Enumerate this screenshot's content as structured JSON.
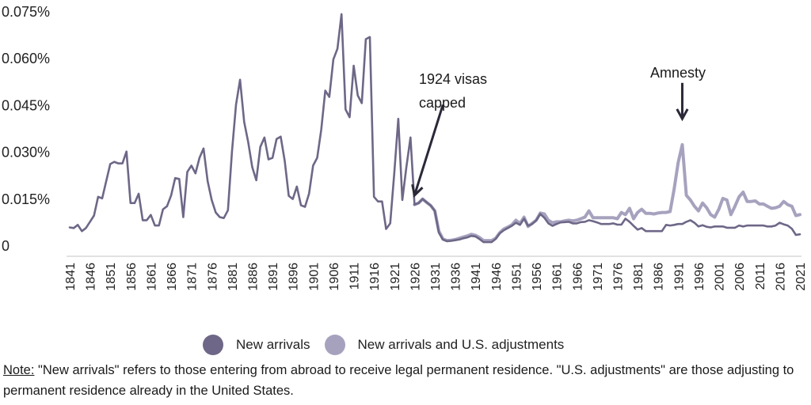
{
  "chart_data": {
    "type": "line",
    "ylabel": "",
    "xlabel": "",
    "ylim": [
      0,
      0.075
    ],
    "yticks": [
      0,
      0.015,
      0.03,
      0.045,
      0.06,
      0.075
    ],
    "ytick_labels": [
      "0",
      "0.015%",
      "0.030%",
      "0.045%",
      "0.060%",
      "0.075%"
    ],
    "xlim": [
      1841,
      2021
    ],
    "xticks": [
      1841,
      1846,
      1851,
      1856,
      1861,
      1866,
      1871,
      1876,
      1881,
      1886,
      1891,
      1896,
      1901,
      1906,
      1911,
      1916,
      1921,
      1926,
      1931,
      1936,
      1941,
      1946,
      1951,
      1956,
      1961,
      1966,
      1971,
      1976,
      1981,
      1986,
      1991,
      1996,
      2001,
      2006,
      2011,
      2016,
      2021
    ],
    "legend_position": "bottom",
    "grid": false,
    "series": [
      {
        "name": "New arrivals",
        "color": "#6e6787",
        "points": [
          [
            1841,
            0.0057
          ],
          [
            1842,
            0.0055
          ],
          [
            1843,
            0.0065
          ],
          [
            1844,
            0.0045
          ],
          [
            1845,
            0.0055
          ],
          [
            1846,
            0.0075
          ],
          [
            1847,
            0.0095
          ],
          [
            1848,
            0.0155
          ],
          [
            1849,
            0.015
          ],
          [
            1850,
            0.0205
          ],
          [
            1851,
            0.026
          ],
          [
            1852,
            0.0267
          ],
          [
            1853,
            0.0262
          ],
          [
            1854,
            0.0262
          ],
          [
            1855,
            0.03
          ],
          [
            1856,
            0.0135
          ],
          [
            1857,
            0.0135
          ],
          [
            1858,
            0.0165
          ],
          [
            1859,
            0.008
          ],
          [
            1860,
            0.008
          ],
          [
            1861,
            0.0097
          ],
          [
            1862,
            0.0063
          ],
          [
            1863,
            0.0063
          ],
          [
            1864,
            0.0115
          ],
          [
            1865,
            0.0125
          ],
          [
            1866,
            0.016
          ],
          [
            1867,
            0.0215
          ],
          [
            1868,
            0.0212
          ],
          [
            1869,
            0.009
          ],
          [
            1870,
            0.0235
          ],
          [
            1871,
            0.0255
          ],
          [
            1872,
            0.023
          ],
          [
            1873,
            0.028
          ],
          [
            1874,
            0.031
          ],
          [
            1875,
            0.0205
          ],
          [
            1876,
            0.0145
          ],
          [
            1877,
            0.0105
          ],
          [
            1878,
            0.009
          ],
          [
            1879,
            0.0087
          ],
          [
            1880,
            0.0112
          ],
          [
            1881,
            0.03
          ],
          [
            1882,
            0.045
          ],
          [
            1883,
            0.053
          ],
          [
            1884,
            0.0395
          ],
          [
            1885,
            0.033
          ],
          [
            1886,
            0.025
          ],
          [
            1887,
            0.0208
          ],
          [
            1888,
            0.0315
          ],
          [
            1889,
            0.0345
          ],
          [
            1890,
            0.0275
          ],
          [
            1891,
            0.028
          ],
          [
            1892,
            0.034
          ],
          [
            1893,
            0.0348
          ],
          [
            1894,
            0.027
          ],
          [
            1895,
            0.0158
          ],
          [
            1896,
            0.0148
          ],
          [
            1897,
            0.0188
          ],
          [
            1898,
            0.0128
          ],
          [
            1899,
            0.0123
          ],
          [
            1900,
            0.0165
          ],
          [
            1901,
            0.0255
          ],
          [
            1902,
            0.028
          ],
          [
            1903,
            0.037
          ],
          [
            1904,
            0.0495
          ],
          [
            1905,
            0.0475
          ],
          [
            1906,
            0.0595
          ],
          [
            1907,
            0.063
          ],
          [
            1908,
            0.074
          ],
          [
            1909,
            0.0435
          ],
          [
            1910,
            0.041
          ],
          [
            1911,
            0.0575
          ],
          [
            1912,
            0.048
          ],
          [
            1913,
            0.0455
          ],
          [
            1914,
            0.066
          ],
          [
            1915,
            0.0667
          ],
          [
            1916,
            0.0155
          ],
          [
            1917,
            0.014
          ],
          [
            1918,
            0.014
          ],
          [
            1919,
            0.0052
          ],
          [
            1920,
            0.007
          ],
          [
            1921,
            0.023
          ],
          [
            1922,
            0.0405
          ],
          [
            1923,
            0.0145
          ],
          [
            1924,
            0.025
          ],
          [
            1925,
            0.0345
          ],
          [
            1926,
            0.013
          ],
          [
            1927,
            0.0135
          ],
          [
            1928,
            0.0148
          ],
          [
            1929,
            0.0137
          ],
          [
            1930,
            0.0127
          ],
          [
            1931,
            0.011
          ],
          [
            1932,
            0.004
          ],
          [
            1933,
            0.0018
          ],
          [
            1934,
            0.0013
          ],
          [
            1935,
            0.0014
          ],
          [
            1936,
            0.0016
          ],
          [
            1937,
            0.0018
          ],
          [
            1938,
            0.0022
          ],
          [
            1939,
            0.0025
          ],
          [
            1940,
            0.003
          ],
          [
            1941,
            0.0028
          ],
          [
            1942,
            0.002
          ],
          [
            1943,
            0.001
          ],
          [
            1944,
            0.001
          ],
          [
            1945,
            0.001
          ],
          [
            1946,
            0.002
          ],
          [
            1947,
            0.0038
          ],
          [
            1948,
            0.0048
          ],
          [
            1949,
            0.0055
          ],
          [
            1950,
            0.0062
          ],
          [
            1951,
            0.0072
          ],
          [
            1952,
            0.0065
          ],
          [
            1953,
            0.0085
          ],
          [
            1954,
            0.0062
          ],
          [
            1955,
            0.0068
          ],
          [
            1956,
            0.008
          ],
          [
            1957,
            0.01
          ],
          [
            1958,
            0.0088
          ],
          [
            1959,
            0.007
          ],
          [
            1960,
            0.0062
          ],
          [
            1961,
            0.0068
          ],
          [
            1962,
            0.0073
          ],
          [
            1963,
            0.0074
          ],
          [
            1964,
            0.0075
          ],
          [
            1965,
            0.007
          ],
          [
            1966,
            0.007
          ],
          [
            1967,
            0.0074
          ],
          [
            1968,
            0.0075
          ],
          [
            1969,
            0.008
          ],
          [
            1970,
            0.0077
          ],
          [
            1971,
            0.0073
          ],
          [
            1972,
            0.0068
          ],
          [
            1973,
            0.0068
          ],
          [
            1974,
            0.0068
          ],
          [
            1975,
            0.007
          ],
          [
            1976,
            0.0066
          ],
          [
            1977,
            0.0066
          ],
          [
            1978,
            0.0085
          ],
          [
            1979,
            0.0075
          ],
          [
            1980,
            0.0062
          ],
          [
            1981,
            0.005
          ],
          [
            1982,
            0.0055
          ],
          [
            1983,
            0.0045
          ],
          [
            1984,
            0.0045
          ],
          [
            1985,
            0.0045
          ],
          [
            1986,
            0.0045
          ],
          [
            1987,
            0.0045
          ],
          [
            1988,
            0.0065
          ],
          [
            1989,
            0.0063
          ],
          [
            1990,
            0.0065
          ],
          [
            1991,
            0.0068
          ],
          [
            1992,
            0.0068
          ],
          [
            1993,
            0.0075
          ],
          [
            1994,
            0.008
          ],
          [
            1995,
            0.0072
          ],
          [
            1996,
            0.006
          ],
          [
            1997,
            0.0064
          ],
          [
            1998,
            0.0059
          ],
          [
            1999,
            0.0057
          ],
          [
            2000,
            0.006
          ],
          [
            2001,
            0.006
          ],
          [
            2002,
            0.006
          ],
          [
            2003,
            0.0056
          ],
          [
            2004,
            0.0056
          ],
          [
            2005,
            0.0056
          ],
          [
            2006,
            0.0063
          ],
          [
            2007,
            0.006
          ],
          [
            2008,
            0.0063
          ],
          [
            2009,
            0.0063
          ],
          [
            2010,
            0.0063
          ],
          [
            2011,
            0.0063
          ],
          [
            2012,
            0.0063
          ],
          [
            2013,
            0.006
          ],
          [
            2014,
            0.006
          ],
          [
            2015,
            0.0063
          ],
          [
            2016,
            0.0072
          ],
          [
            2017,
            0.0067
          ],
          [
            2018,
            0.0063
          ],
          [
            2019,
            0.0053
          ],
          [
            2020,
            0.0033
          ],
          [
            2021,
            0.0035
          ]
        ]
      },
      {
        "name": "New arrivals and U.S. adjustments",
        "color": "#a6a2be",
        "points": [
          [
            1926,
            0.013
          ],
          [
            1927,
            0.0135
          ],
          [
            1928,
            0.0148
          ],
          [
            1929,
            0.0137
          ],
          [
            1930,
            0.0127
          ],
          [
            1931,
            0.011
          ],
          [
            1932,
            0.0045
          ],
          [
            1933,
            0.002
          ],
          [
            1934,
            0.0015
          ],
          [
            1935,
            0.0016
          ],
          [
            1936,
            0.0018
          ],
          [
            1937,
            0.0022
          ],
          [
            1938,
            0.0026
          ],
          [
            1939,
            0.003
          ],
          [
            1940,
            0.0035
          ],
          [
            1941,
            0.0032
          ],
          [
            1942,
            0.0025
          ],
          [
            1943,
            0.0015
          ],
          [
            1944,
            0.0015
          ],
          [
            1945,
            0.0015
          ],
          [
            1946,
            0.0022
          ],
          [
            1947,
            0.004
          ],
          [
            1948,
            0.0052
          ],
          [
            1949,
            0.0058
          ],
          [
            1950,
            0.0065
          ],
          [
            1951,
            0.008
          ],
          [
            1952,
            0.007
          ],
          [
            1953,
            0.009
          ],
          [
            1954,
            0.006
          ],
          [
            1955,
            0.007
          ],
          [
            1956,
            0.008
          ],
          [
            1957,
            0.0103
          ],
          [
            1958,
            0.01
          ],
          [
            1959,
            0.008
          ],
          [
            1960,
            0.0072
          ],
          [
            1961,
            0.0075
          ],
          [
            1962,
            0.0075
          ],
          [
            1963,
            0.0078
          ],
          [
            1964,
            0.008
          ],
          [
            1965,
            0.0078
          ],
          [
            1966,
            0.008
          ],
          [
            1967,
            0.0085
          ],
          [
            1968,
            0.009
          ],
          [
            1969,
            0.011
          ],
          [
            1970,
            0.0088
          ],
          [
            1971,
            0.0088
          ],
          [
            1972,
            0.0088
          ],
          [
            1973,
            0.0088
          ],
          [
            1974,
            0.0088
          ],
          [
            1975,
            0.0088
          ],
          [
            1976,
            0.0085
          ],
          [
            1977,
            0.0105
          ],
          [
            1978,
            0.0098
          ],
          [
            1979,
            0.0118
          ],
          [
            1980,
            0.0085
          ],
          [
            1981,
            0.0105
          ],
          [
            1982,
            0.0115
          ],
          [
            1983,
            0.0102
          ],
          [
            1984,
            0.0102
          ],
          [
            1985,
            0.01
          ],
          [
            1986,
            0.0103
          ],
          [
            1987,
            0.0105
          ],
          [
            1988,
            0.0105
          ],
          [
            1989,
            0.0108
          ],
          [
            1990,
            0.018
          ],
          [
            1991,
            0.0265
          ],
          [
            1992,
            0.0322
          ],
          [
            1993,
            0.016
          ],
          [
            1994,
            0.0145
          ],
          [
            1995,
            0.0125
          ],
          [
            1996,
            0.011
          ],
          [
            1997,
            0.0135
          ],
          [
            1998,
            0.012
          ],
          [
            1999,
            0.0098
          ],
          [
            2000,
            0.009
          ],
          [
            2001,
            0.0115
          ],
          [
            2002,
            0.015
          ],
          [
            2003,
            0.0145
          ],
          [
            2004,
            0.0098
          ],
          [
            2005,
            0.0125
          ],
          [
            2006,
            0.0155
          ],
          [
            2007,
            0.017
          ],
          [
            2008,
            0.014
          ],
          [
            2009,
            0.014
          ],
          [
            2010,
            0.0142
          ],
          [
            2011,
            0.0132
          ],
          [
            2012,
            0.0132
          ],
          [
            2013,
            0.0125
          ],
          [
            2014,
            0.0118
          ],
          [
            2015,
            0.012
          ],
          [
            2016,
            0.0125
          ],
          [
            2017,
            0.014
          ],
          [
            2018,
            0.013
          ],
          [
            2019,
            0.0125
          ],
          [
            2020,
            0.0095
          ],
          [
            2021,
            0.0098
          ]
        ]
      }
    ],
    "annotations": [
      {
        "lines": [
          "1924 visas",
          "capped"
        ],
        "arrow_from": [
          1933,
          0.045
        ],
        "arrow_to": [
          1926,
          0.016
        ]
      },
      {
        "lines": [
          "Amnesty"
        ],
        "arrow_from": [
          1992,
          0.052
        ],
        "arrow_to": [
          1992,
          0.0405
        ]
      }
    ]
  },
  "legend": {
    "items": [
      {
        "label": "New arrivals",
        "color": "#6e6787"
      },
      {
        "label": "New arrivals and U.S. adjustments",
        "color": "#a6a2be"
      }
    ]
  },
  "note": {
    "label": "Note:",
    "text": " \"New arrivals\" refers to those entering from abroad to receive legal permanent residence. \"U.S. adjustments\" are those adjusting to permanent residence already in the United States."
  }
}
